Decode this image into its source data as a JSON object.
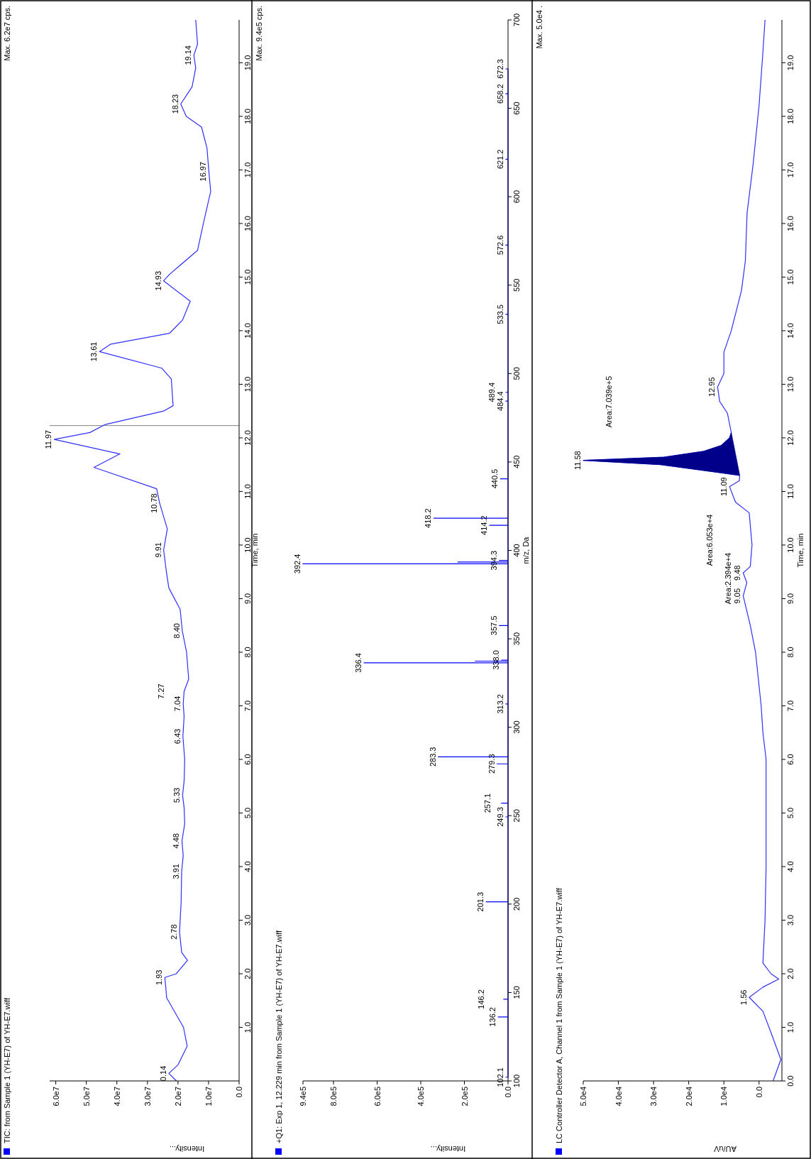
{
  "chart_data": [
    {
      "type": "line",
      "title": "TIC: from Sample 1 (YH-E7) of YH-E7.wiff",
      "xlabel": "Intensity...",
      "ylabel": "Time, min",
      "series": [
        {
          "color": "#3030ff",
          "x": [
            20500000.0,
            23000000.0,
            20000000.0,
            17000000.0,
            18200000.0,
            23700000.0,
            24300000.0,
            20600000.0,
            16900000.0,
            18800000.0,
            19500000.0,
            19000000.0,
            18800000.0,
            18300000.0,
            18700000.0,
            17800000.0,
            18000000.0,
            18500000.0,
            18000000.0,
            17800000.0,
            18400000.0,
            18000000.0,
            18300000.0,
            18000000.0,
            16500000.0,
            17200000.0,
            18600000.0,
            19300000.0,
            23000000.0,
            23800000.0,
            24700000.0,
            23500000.0,
            26000000.0,
            27000000.0,
            47500000.0,
            39000000.0,
            60500000.0,
            48800000.0,
            43800000.0,
            24700000.0,
            21600000.0,
            22200000.0,
            25300000.0,
            45700000.0,
            42000000.0,
            22800000.0,
            18500000.0,
            16000000.0,
            24700000.0,
            22800000.0,
            13600000.0,
            11700000.0,
            9300000.0,
            9900000.0,
            10500000.0,
            12300000.0,
            17300000.0,
            19100000.0,
            15400000.0,
            14200000.0,
            14800000.0,
            13600000.0,
            14200000.0
          ],
          "values": [
            0.0,
            0.14,
            0.3,
            0.65,
            1.0,
            1.55,
            1.93,
            2.0,
            2.25,
            2.4,
            2.78,
            3.3,
            3.91,
            4.2,
            4.48,
            4.8,
            5.1,
            5.33,
            5.6,
            6.0,
            6.43,
            6.8,
            7.04,
            7.27,
            7.5,
            8.0,
            8.4,
            8.8,
            9.2,
            9.5,
            9.91,
            10.3,
            10.78,
            11.05,
            11.45,
            11.7,
            11.97,
            12.1,
            12.25,
            12.5,
            12.6,
            13.1,
            13.3,
            13.61,
            13.75,
            13.95,
            14.2,
            14.55,
            14.93,
            15.05,
            15.5,
            16.0,
            16.6,
            16.97,
            17.4,
            17.8,
            18.0,
            18.23,
            18.55,
            18.9,
            19.14,
            19.35,
            19.8
          ]
        }
      ],
      "xlim": [
        62000000.0,
        0
      ],
      "xticks": [
        {
          "value": 0,
          "label": "0.0"
        },
        {
          "value": 10000000.0,
          "label": "1.0e7"
        },
        {
          "value": 20000000.0,
          "label": "2.0e7"
        },
        {
          "value": 30000000.0,
          "label": "3.0e7"
        },
        {
          "value": 40000000.0,
          "label": "4.0e7"
        },
        {
          "value": 50000000.0,
          "label": "5.0e7"
        },
        {
          "value": 60000000.0,
          "label": "6.0e7"
        }
      ],
      "ylim": [
        0,
        19.8
      ],
      "yticks": [
        {
          "value": 1,
          "label": "1.0"
        },
        {
          "value": 2,
          "label": "2.0"
        },
        {
          "value": 3,
          "label": "3.0"
        },
        {
          "value": 4,
          "label": "4.0"
        },
        {
          "value": 5,
          "label": "5.0"
        },
        {
          "value": 6,
          "label": "6.0"
        },
        {
          "value": 7,
          "label": "7.0"
        },
        {
          "value": 8,
          "label": "8.0"
        },
        {
          "value": 9,
          "label": "9.0"
        },
        {
          "value": 10,
          "label": "10.0"
        },
        {
          "value": 11,
          "label": "11.0"
        },
        {
          "value": 12,
          "label": "12.0"
        },
        {
          "value": 13,
          "label": "13.0"
        },
        {
          "value": 14,
          "label": "14.0"
        },
        {
          "value": 15,
          "label": "15.0"
        },
        {
          "value": 16,
          "label": "16.0"
        },
        {
          "value": 17,
          "label": "17.0"
        },
        {
          "value": 18,
          "label": "18.0"
        },
        {
          "value": 19,
          "label": "19.0"
        }
      ],
      "ref_lines": [
        {
          "axis": "y",
          "value": 12.229,
          "color": "#808080"
        }
      ],
      "annotations": [
        "Max. 6.2e7 cps.",
        {
          "text": "0.14",
          "x": 23000000.0,
          "y": 0.14
        },
        {
          "text": "1.93",
          "x": 24300000.0,
          "y": 1.93
        },
        {
          "text": "2.78",
          "x": 19500000.0,
          "y": 2.78
        },
        {
          "text": "3.91",
          "x": 18800000.0,
          "y": 3.91
        },
        {
          "text": "4.48",
          "x": 18700000.0,
          "y": 4.48
        },
        {
          "text": "5.33",
          "x": 18500000.0,
          "y": 5.33
        },
        {
          "text": "6.43",
          "x": 18400000.0,
          "y": 6.43
        },
        {
          "text": "7.04",
          "x": 18300000.0,
          "y": 7.04
        },
        {
          "text": "7.27",
          "x": 18000000.0,
          "y": 7.27
        },
        {
          "text": "8.40",
          "x": 18600000.0,
          "y": 8.4
        },
        {
          "text": "9.91",
          "x": 24700000.0,
          "y": 9.91
        },
        {
          "text": "10.78",
          "x": 26000000.0,
          "y": 10.78
        },
        {
          "text": "11.97",
          "x": 60500000.0,
          "y": 11.97
        },
        {
          "text": "13.61",
          "x": 45700000.0,
          "y": 13.61
        },
        {
          "text": "14.93",
          "x": 24700000.0,
          "y": 14.93
        },
        {
          "text": "16.97",
          "x": 9900000.0,
          "y": 16.97
        },
        {
          "text": "18.23",
          "x": 19100000.0,
          "y": 18.23
        },
        {
          "text": "19.14",
          "x": 14800000.0,
          "y": 19.14
        }
      ]
    },
    {
      "type": "line",
      "title": "+Q1: Exp 1, 12.229 min from Sample 1 (YH-E7) of YH-E7.wiff",
      "xlabel": "Intensity...",
      "ylabel": "m/z, Da",
      "series": [
        {
          "color": "#0000ff",
          "x": [
            0,
            10000.0,
            0,
            0,
            45000.0,
            0,
            0,
            20000.0,
            0,
            0,
            100000.0,
            0,
            0,
            10000.0,
            0,
            0,
            30000.0,
            0,
            0,
            50000.0,
            0,
            0,
            320000.0,
            0,
            0,
            10000.0,
            0,
            0,
            660000.0,
            0,
            0,
            150000.0,
            0,
            0,
            30000.0,
            0,
            0,
            40000.0,
            0,
            0,
            940000.0,
            0,
            0,
            230000.0,
            0,
            0,
            40000.0,
            0,
            0,
            85000.0,
            0,
            0,
            340000.0,
            0,
            0,
            35000.0,
            0,
            0,
            10000.0,
            0,
            0,
            10000.0,
            0,
            0,
            10000.0,
            0,
            0,
            10000.0,
            0,
            0,
            10000.0,
            0,
            0,
            10000.0,
            0,
            0,
            10000.0,
            0
          ],
          "values": [
            102.1,
            102.1,
            102.1,
            136.2,
            136.2,
            136.2,
            146.2,
            146.2,
            146.2,
            201.3,
            201.3,
            201.3,
            249.3,
            249.3,
            249.3,
            257.1,
            257.1,
            257.1,
            279.3,
            279.3,
            279.3,
            283.3,
            283.3,
            283.3,
            313.2,
            313.2,
            313.2,
            336.4,
            336.4,
            336.4,
            337.4,
            337.4,
            337.4,
            338.0,
            338.0,
            338.0,
            357.5,
            357.5,
            357.5,
            392.4,
            392.4,
            392.4,
            393.4,
            393.4,
            393.4,
            394.3,
            394.3,
            394.3,
            414.2,
            414.2,
            414.2,
            418.2,
            418.2,
            418.2,
            440.5,
            440.5,
            440.5,
            484.4,
            484.4,
            484.4,
            489.4,
            489.4,
            489.4,
            533.5,
            533.5,
            533.5,
            572.6,
            572.6,
            572.6,
            621.2,
            621.2,
            621.2,
            658.2,
            658.2,
            658.2,
            672.3,
            672.3,
            672.3
          ]
        }
      ],
      "xlim": [
        940000.0,
        0
      ],
      "xticks": [
        {
          "value": 0,
          "label": "0.0"
        },
        {
          "value": 200000.0,
          "label": "2.0e5"
        },
        {
          "value": 400000.0,
          "label": "4.0e5"
        },
        {
          "value": 600000.0,
          "label": "6.0e5"
        },
        {
          "value": 800000.0,
          "label": "8.0e5"
        },
        {
          "value": 940000.0,
          "label": "9.4e5"
        }
      ],
      "ylim": [
        100,
        700
      ],
      "yticks": [
        100,
        150,
        200,
        250,
        300,
        350,
        400,
        450,
        500,
        550,
        600,
        650,
        700
      ],
      "annotations": [
        "Max. 9.4e5 cps.",
        {
          "text": "102.1",
          "x": 10000.0,
          "y": 102.1
        },
        {
          "text": "136.2",
          "x": 45000.0,
          "y": 136.2
        },
        {
          "text": "146.2",
          "x": 20000.0,
          "y": 146.2
        },
        {
          "text": "201.3",
          "x": 100000.0,
          "y": 201.3
        },
        {
          "text": "249.3",
          "x": 10000.0,
          "y": 249.3
        },
        {
          "text": "257.1",
          "x": 30000.0,
          "y": 257.1
        },
        {
          "text": "279.3",
          "x": 50000.0,
          "y": 279.3
        },
        {
          "text": "283.3",
          "x": 320000.0,
          "y": 283.3
        },
        {
          "text": "313.2",
          "x": 10000.0,
          "y": 313.2
        },
        {
          "text": "336.4",
          "x": 660000.0,
          "y": 336.4
        },
        {
          "text": "338.0",
          "x": 30000.0,
          "y": 338.0
        },
        {
          "text": "357.5",
          "x": 40000.0,
          "y": 357.5
        },
        {
          "text": "392.4",
          "x": 940000.0,
          "y": 392.4
        },
        {
          "text": "394.3",
          "x": 40000.0,
          "y": 394.3
        },
        {
          "text": "414.2",
          "x": 85000.0,
          "y": 414.2
        },
        {
          "text": "418.2",
          "x": 340000.0,
          "y": 418.2
        },
        {
          "text": "440.5",
          "x": 35000.0,
          "y": 440.5
        },
        {
          "text": "484.4",
          "x": 10000.0,
          "y": 484.4
        },
        {
          "text": "489.4",
          "x": 10000.0,
          "y": 489.4
        },
        {
          "text": "533.5",
          "x": 10000.0,
          "y": 533.5
        },
        {
          "text": "572.6",
          "x": 10000.0,
          "y": 572.6
        },
        {
          "text": "621.2",
          "x": 10000.0,
          "y": 621.2
        },
        {
          "text": "658.2",
          "x": 10000.0,
          "y": 658.2
        },
        {
          "text": "672.3",
          "x": 10000.0,
          "y": 672.3
        }
      ]
    },
    {
      "type": "line",
      "title": "LC Controller Detector A, Channel 1 from Sample 1 (YH-E7) of YH-E7.wiff",
      "xlabel": "AU/uV",
      "ylabel": "Time, min",
      "series": [
        {
          "color": "#3030ff",
          "x": [
            -4000,
            -6200,
            -3400,
            -1100,
            2800,
            -1100,
            -5600,
            -3400,
            -1100,
            -1700,
            -2000,
            -2000,
            -2000,
            -1100,
            -600,
            1000,
            2500,
            4500,
            3500,
            4500,
            2500,
            2000,
            2800,
            6700,
            8400,
            5600,
            5500,
            28000,
            50000,
            27000,
            15700,
            10700,
            8400,
            7900,
            9000,
            11200,
            11800,
            10000,
            10000,
            7900,
            5000,
            3900,
            3400,
            1700,
            0,
            -1100,
            -1700
          ],
          "values": [
            0,
            0.4,
            0.9,
            1.3,
            1.56,
            1.75,
            1.9,
            2.0,
            2.2,
            3.0,
            4.0,
            5.0,
            6.0,
            6.5,
            7.0,
            8.0,
            8.5,
            9.05,
            9.3,
            9.48,
            9.6,
            10.0,
            10.6,
            10.8,
            11.09,
            11.2,
            11.3,
            11.5,
            11.58,
            11.64,
            11.75,
            11.86,
            12.0,
            12.1,
            12.46,
            12.68,
            12.95,
            13.2,
            13.6,
            14.0,
            14.75,
            15.3,
            16.2,
            17.1,
            18.2,
            19.2,
            19.8
          ]
        },
        {
          "type": "area",
          "color": "#00008b",
          "x": [
            5500,
            28000,
            50000,
            27000,
            15700,
            10700,
            8400,
            7900
          ],
          "values": [
            11.3,
            11.5,
            11.58,
            11.64,
            11.75,
            11.86,
            12.0,
            12.1
          ]
        }
      ],
      "xlim": [
        50000,
        -6500
      ],
      "xticks": [
        {
          "value": 0,
          "label": "0.0"
        },
        {
          "value": 10000,
          "label": "1.0e4"
        },
        {
          "value": 20000,
          "label": "2.0e4"
        },
        {
          "value": 30000,
          "label": "3.0e4"
        },
        {
          "value": 40000,
          "label": "4.0e4"
        },
        {
          "value": 50000,
          "label": "5.0e4"
        }
      ],
      "ylim": [
        0,
        19.8
      ],
      "yticks": [
        {
          "value": 0,
          "label": "0.0"
        },
        {
          "value": 1,
          "label": "1.0"
        },
        {
          "value": 2,
          "label": "2.0"
        },
        {
          "value": 3,
          "label": "3.0"
        },
        {
          "value": 4,
          "label": "4.0"
        },
        {
          "value": 5,
          "label": "5.0"
        },
        {
          "value": 6,
          "label": "6.0"
        },
        {
          "value": 7,
          "label": "7.0"
        },
        {
          "value": 8,
          "label": "8.0"
        },
        {
          "value": 9,
          "label": "9.0"
        },
        {
          "value": 10,
          "label": "10.0"
        },
        {
          "value": 11,
          "label": "11.0"
        },
        {
          "value": 12,
          "label": "12.0"
        },
        {
          "value": 13,
          "label": "13.0"
        },
        {
          "value": 14,
          "label": "14.0"
        },
        {
          "value": 15,
          "label": "15.0"
        },
        {
          "value": 16,
          "label": "16.0"
        },
        {
          "value": 17,
          "label": "17.0"
        },
        {
          "value": 18,
          "label": "18.0"
        },
        {
          "value": 19,
          "label": "19.0"
        }
      ],
      "annotations": [
        "Max. 5.0e4 .",
        "Area:7.039e+5",
        "Area:6.053e+4",
        "Area:2.394e+4",
        {
          "text": "1.56",
          "x": 2800,
          "y": 1.56
        },
        {
          "text": "9.05",
          "x": 4500,
          "y": 9.05
        },
        {
          "text": "9.48",
          "x": 4500,
          "y": 9.48
        },
        {
          "text": "11.09",
          "x": 8400,
          "y": 11.09
        },
        {
          "text": "11.58",
          "x": 50000,
          "y": 11.58
        },
        {
          "text": "12.95",
          "x": 11800,
          "y": 12.95
        }
      ]
    }
  ]
}
